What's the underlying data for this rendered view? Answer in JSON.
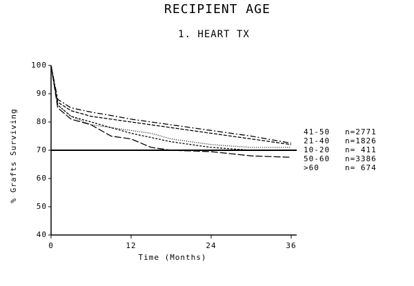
{
  "chart_data": {
    "type": "line",
    "title": "RECIPIENT AGE",
    "subtitle": "1. HEART TX",
    "x_label": "Time (Months)",
    "y_label": "% Grafts Surviving",
    "x": [
      0,
      1,
      3,
      6,
      9,
      12,
      15,
      18,
      24,
      30,
      36
    ],
    "xlim": [
      0,
      36
    ],
    "xticks": [
      0,
      12,
      24,
      36
    ],
    "ylim": [
      40,
      100
    ],
    "yticks": [
      40,
      50,
      60,
      70,
      80,
      90,
      100
    ],
    "reference_line": 70,
    "series": [
      {
        "name": "41-50",
        "count": "n=2771",
        "color": "#000000",
        "dash": "8 3 2 3",
        "values": [
          100,
          88,
          85,
          83.5,
          82.3,
          81,
          80,
          79,
          77,
          75,
          72.5
        ]
      },
      {
        "name": "21-40",
        "count": "n=1826",
        "color": "#000000",
        "dash": "5 2",
        "values": [
          100,
          87,
          84,
          82,
          81,
          80,
          79,
          78,
          76,
          74,
          72
        ]
      },
      {
        "name": "10-20",
        "count": "n= 411",
        "color": "#000000",
        "dash": "1 2",
        "values": [
          100,
          86,
          82,
          79,
          78,
          77,
          76,
          74,
          72,
          71,
          71
        ]
      },
      {
        "name": "50-60",
        "count": "n=3386",
        "color": "#000000",
        "dash": "3 2",
        "values": [
          100,
          86,
          82,
          80,
          78,
          76,
          74.5,
          73,
          71,
          70,
          70
        ]
      },
      {
        "name": ">60",
        "count": "n= 674",
        "color": "#000000",
        "dash": "10 3",
        "values": [
          100,
          85,
          81,
          79,
          75,
          74,
          71,
          70,
          69.5,
          68,
          67.5
        ]
      }
    ]
  }
}
